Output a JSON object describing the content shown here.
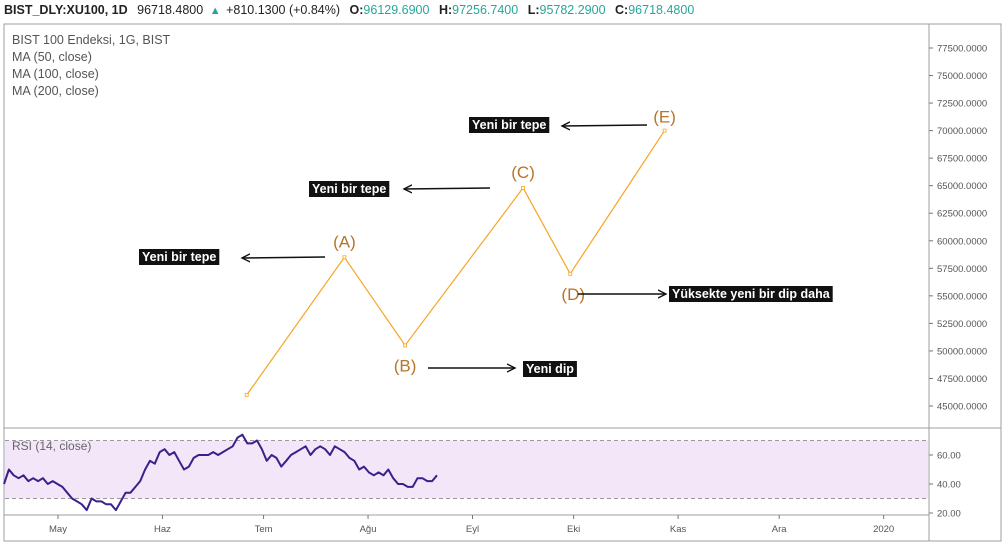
{
  "header": {
    "symbol": "BIST_DLY:XU100, 1D",
    "last": "96718.4800",
    "change": "+810.1300 (+0.84%)",
    "o_label": "O:",
    "o_value": "96129.6900",
    "h_label": "H:",
    "h_value": "97256.7400",
    "l_label": "L:",
    "l_value": "95782.2900",
    "c_label": "C:",
    "c_value": "96718.4800"
  },
  "legend": [
    "BIST 100 Endeksi, 1G, BIST",
    "MA (50, close)",
    "MA (100, close)",
    "MA (200, close)"
  ],
  "rsi_label": "RSI (14, close)",
  "colors": {
    "wave": "#f5a623",
    "point_label": "#b8742a",
    "rsi_line": "#3c1f8a",
    "rsi_band": "#f3e6f8",
    "up": "#26a69a"
  },
  "chart_data": {
    "type": "line",
    "price_axis": {
      "min": 45000,
      "max": 77500,
      "step": 2500,
      "tick_labels": [
        "45000.0000",
        "47500.0000",
        "50000.0000",
        "52500.0000",
        "55000.0000",
        "57500.0000",
        "60000.0000",
        "62500.0000",
        "65000.0000",
        "67500.0000",
        "70000.0000",
        "72500.0000",
        "75000.0000",
        "77500.0000"
      ]
    },
    "time_axis": {
      "labels": [
        "May",
        "Haz",
        "Tem",
        "Ağu",
        "Eyl",
        "Eki",
        "Kas",
        "Ara",
        "2020"
      ]
    },
    "wave": [
      {
        "label": "",
        "date": "2019-06-26",
        "value": 46000
      },
      {
        "label": "(A)",
        "date": "2019-07-25",
        "value": 58500
      },
      {
        "label": "(B)",
        "date": "2019-08-12",
        "value": 50500
      },
      {
        "label": "(C)",
        "date": "2019-09-16",
        "value": 64800
      },
      {
        "label": "(D)",
        "date": "2019-09-30",
        "value": 57000
      },
      {
        "label": "(E)",
        "date": "2019-10-28",
        "value": 70000
      }
    ],
    "annotations": [
      {
        "text": "Yeni bir tepe",
        "point": "(A)"
      },
      {
        "text": "Yeni dip",
        "point": "(B)"
      },
      {
        "text": "Yeni bir tepe",
        "point": "(C)"
      },
      {
        "text": "Yüksekte yeni bir dip daha",
        "point": "(D)"
      },
      {
        "text": "Yeni bir tepe",
        "point": "(E)"
      }
    ],
    "rsi": {
      "ticks": [
        "20.00",
        "40.00",
        "60.00"
      ],
      "overbought": 70,
      "oversold": 30,
      "values": [
        40,
        50,
        46,
        44,
        46,
        42,
        44,
        42,
        44,
        40,
        42,
        40,
        38,
        34,
        30,
        28,
        26,
        22,
        30,
        28,
        28,
        26,
        26,
        22,
        28,
        34,
        34,
        38,
        42,
        50,
        56,
        54,
        62,
        64,
        60,
        62,
        56,
        50,
        52,
        58,
        60,
        60,
        60,
        62,
        60,
        62,
        64,
        66,
        72,
        74,
        68,
        68,
        70,
        64,
        56,
        60,
        58,
        52,
        56,
        60,
        62,
        64,
        66,
        60,
        64,
        66,
        64,
        60,
        66,
        64,
        62,
        58,
        56,
        50,
        52,
        48,
        46,
        48,
        46,
        50,
        44,
        40,
        40,
        38,
        38,
        44,
        44,
        42,
        42,
        46
      ]
    }
  }
}
